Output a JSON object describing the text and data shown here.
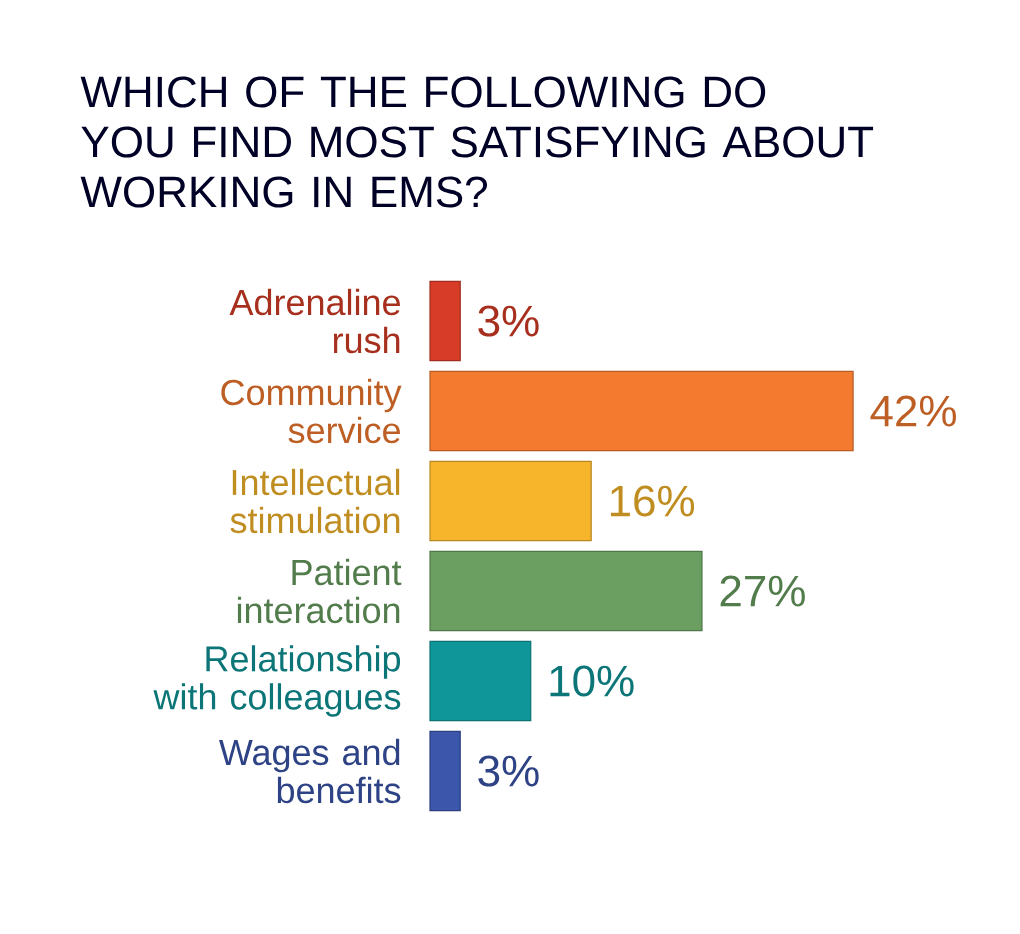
{
  "chart_data": {
    "type": "bar",
    "orientation": "horizontal",
    "title": "WHICH OF THE FOLLOWING DO YOU FIND MOST SATISFYING ABOUT WORKING IN EMS?",
    "categories": [
      "Adrenaline rush",
      "Community service",
      "Intellectual stimulation",
      "Patient interaction",
      "Relationship with colleagues",
      "Wages and benefits"
    ],
    "values": [
      3,
      42,
      16,
      27,
      10,
      3
    ],
    "value_labels": [
      "3%",
      "42%",
      "16%",
      "27%",
      "10%",
      "3%"
    ],
    "colors": [
      "#d63c27",
      "#f37a2f",
      "#f6b52a",
      "#6b9f62",
      "#0f9698",
      "#3b56ab"
    ]
  }
}
